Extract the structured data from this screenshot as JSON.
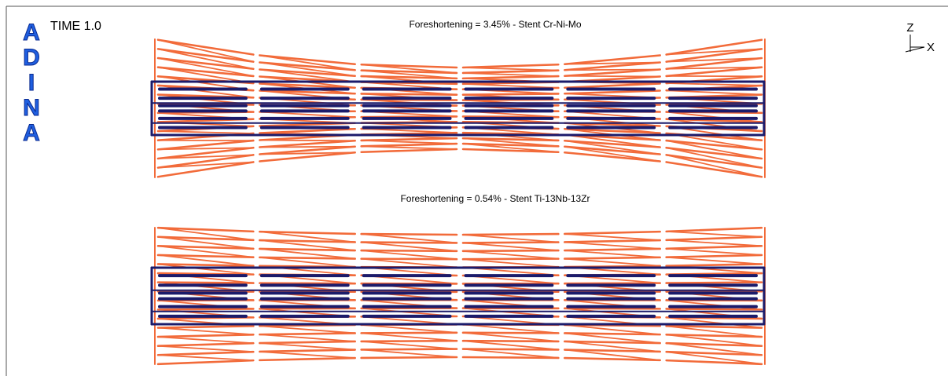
{
  "logo": "ADINA",
  "time_label": "TIME 1.0",
  "plots": [
    {
      "title": "Foreshortening = 3.45% - Stent Cr-Ni-Mo"
    },
    {
      "title": "Foreshortening = 0.54% - Stent Ti-13Nb-13Zr"
    }
  ],
  "axes": {
    "vertical": "Z",
    "horizontal": "X"
  }
}
